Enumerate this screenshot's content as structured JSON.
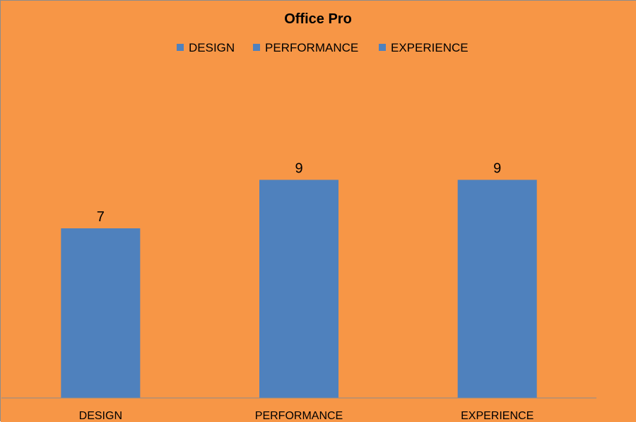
{
  "colors": {
    "background": "#F79646",
    "bar": "#4F81BD",
    "axis": "#8C8C8C",
    "text": "#000000"
  },
  "chart_data": {
    "type": "bar",
    "title": "Office Pro",
    "categories": [
      "DESIGN",
      "PERFORMANCE",
      "EXPERIENCE"
    ],
    "values": [
      7,
      9,
      9
    ],
    "data_labels": [
      "7",
      "9",
      "9"
    ],
    "legend": {
      "position": "top",
      "entries": [
        "DESIGN",
        "PERFORMANCE",
        "EXPERIENCE"
      ]
    },
    "ylim": [
      0,
      14
    ],
    "grid": false,
    "xlabel": "",
    "ylabel": ""
  }
}
